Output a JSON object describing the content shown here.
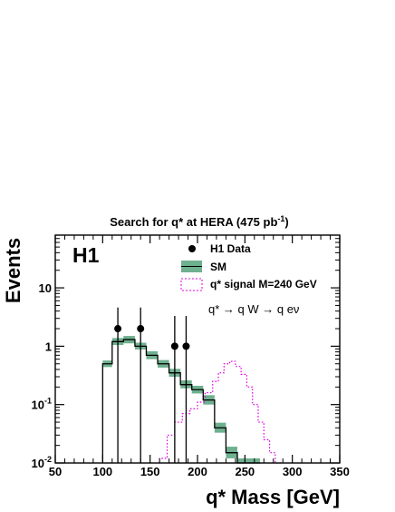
{
  "chart_data": {
    "type": "histogram",
    "title": "Search for q* at HERA (475 pb",
    "title_sup": "-1",
    "title_end": ")",
    "experiment_label": "H1",
    "xlabel": "q* Mass [GeV]",
    "ylabel": "Events",
    "xlim": [
      50,
      350
    ],
    "ylim": [
      0.01,
      80
    ],
    "y_scale": "log",
    "x_ticks": [
      50,
      100,
      150,
      200,
      250,
      300,
      350
    ],
    "x_tick_labels": [
      "50",
      "100",
      "150",
      "200",
      "250",
      "300",
      "350"
    ],
    "y_ticks": [
      0.01,
      0.1,
      1,
      10
    ],
    "y_tick_labels": [
      {
        "base": "10",
        "exp": "-2"
      },
      {
        "base": "10",
        "exp": "-1"
      },
      {
        "base": "1",
        "exp": ""
      },
      {
        "base": "10",
        "exp": ""
      }
    ],
    "process_annotation": "q* → q W → q eν",
    "legend": {
      "placement": "top-right",
      "entries": [
        {
          "label": "H1 Data",
          "symbol": "marker"
        },
        {
          "label": "SM",
          "symbol": "band"
        },
        {
          "label": "q* signal M=240 GeV",
          "symbol": "dashed-box"
        }
      ]
    },
    "series": [
      {
        "name": "H1 Data",
        "kind": "points",
        "x": [
          116,
          140,
          176,
          188
        ],
        "y": [
          2,
          2,
          1,
          1
        ],
        "err_low": [
          0.01,
          0.01,
          0.01,
          0.01
        ],
        "err_high": [
          4.6,
          4.6,
          3.3,
          3.3
        ]
      },
      {
        "name": "SM",
        "kind": "step",
        "bin_edges": [
          100,
          110,
          122,
          134,
          146,
          158,
          170,
          182,
          194,
          206,
          218,
          230,
          242,
          254,
          266
        ],
        "values": [
          0.5,
          1.2,
          1.3,
          1.0,
          0.7,
          0.5,
          0.35,
          0.22,
          0.18,
          0.12,
          0.04,
          0.015,
          0.009,
          0.01
        ],
        "band_low": [
          0.44,
          1.05,
          1.12,
          0.88,
          0.6,
          0.43,
          0.3,
          0.19,
          0.155,
          0.1,
          0.033,
          0.012,
          0.007,
          0.008
        ],
        "band_high": [
          0.57,
          1.38,
          1.5,
          1.15,
          0.82,
          0.58,
          0.41,
          0.26,
          0.21,
          0.145,
          0.049,
          0.019,
          0.012,
          0.012
        ]
      },
      {
        "name": "q* signal M=240 GeV",
        "kind": "dotted-step",
        "x": [
          160,
          168,
          176,
          184,
          192,
          200,
          208,
          216,
          222,
          228,
          234,
          240,
          246,
          252,
          258,
          264,
          270,
          276,
          282
        ],
        "y": [
          0.012,
          0.03,
          0.05,
          0.07,
          0.085,
          0.11,
          0.16,
          0.25,
          0.35,
          0.5,
          0.55,
          0.45,
          0.33,
          0.2,
          0.1,
          0.05,
          0.025,
          0.015,
          0.01
        ]
      }
    ],
    "colors": {
      "data": "#000000",
      "sm_line": "#000000",
      "sm_band": "#6fb08f",
      "signal": "#e000e0"
    }
  }
}
